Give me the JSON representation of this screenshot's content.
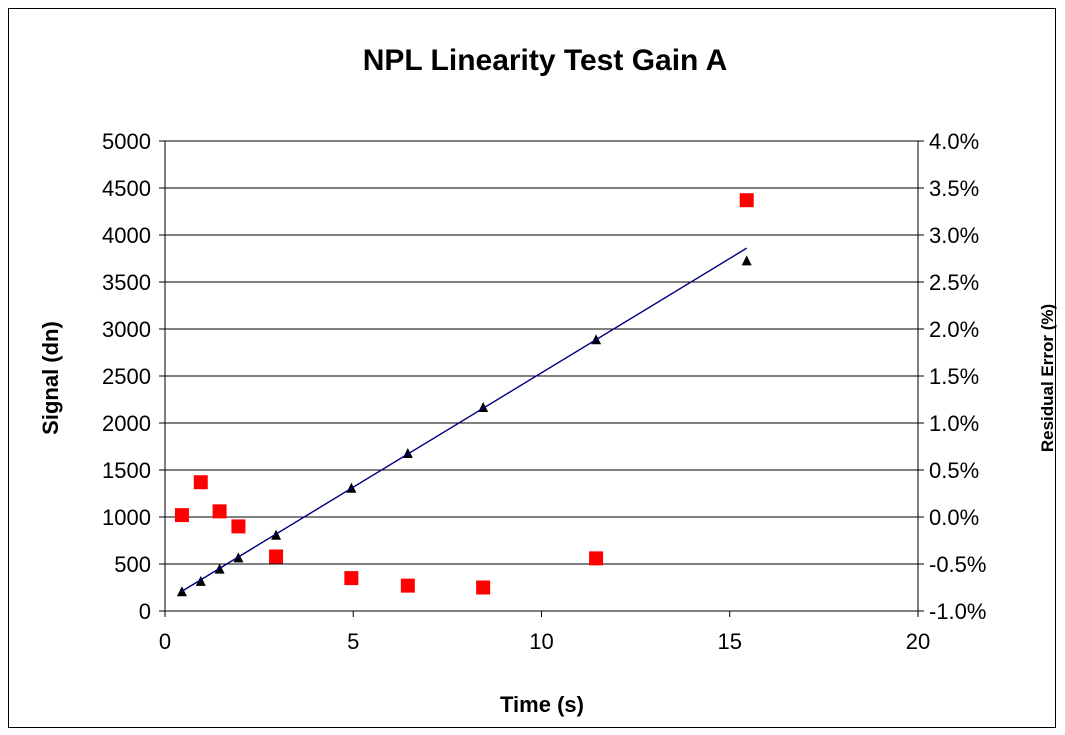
{
  "chart_data": {
    "type": "scatter",
    "title": "NPL Linearity Test Gain A",
    "xlabel": "Time (s)",
    "ylabel": "Signal (dn)",
    "y2label": "Residual Error (%)",
    "xlim": [
      0,
      20
    ],
    "ylim": [
      0,
      5000
    ],
    "y2lim": [
      -1.0,
      4.0
    ],
    "x_ticks": [
      "0",
      "5",
      "10",
      "15",
      "20"
    ],
    "y_ticks": [
      "0",
      "500",
      "1000",
      "1500",
      "2000",
      "2500",
      "3000",
      "3500",
      "4000",
      "4500",
      "5000"
    ],
    "y2_ticks": [
      "-1.0%",
      "-0.5%",
      "0.0%",
      "0.5%",
      "1.0%",
      "1.5%",
      "2.0%",
      "2.5%",
      "3.0%",
      "3.5%",
      "4.0%"
    ],
    "grid": "horizontal",
    "series": [
      {
        "axis": "left",
        "marker": "triangle",
        "color": "#000000",
        "x": [
          0.45,
          0.95,
          1.45,
          1.95,
          2.95,
          4.95,
          6.45,
          8.45,
          11.45,
          15.45
        ],
        "y": [
          200,
          310,
          440,
          560,
          800,
          1300,
          1670,
          2160,
          2880,
          3720
        ]
      },
      {
        "axis": "left",
        "type": "line",
        "color": "#000080",
        "x": [
          0.45,
          15.45
        ],
        "y": [
          210,
          3860
        ]
      },
      {
        "axis": "right",
        "marker": "square",
        "color": "#ff0000",
        "x": [
          0.45,
          0.95,
          1.45,
          1.95,
          2.95,
          4.95,
          6.45,
          8.45,
          11.45,
          15.45
        ],
        "y": [
          0.02,
          0.37,
          0.06,
          -0.1,
          -0.42,
          -0.65,
          -0.73,
          -0.75,
          -0.44,
          3.37
        ]
      }
    ]
  }
}
